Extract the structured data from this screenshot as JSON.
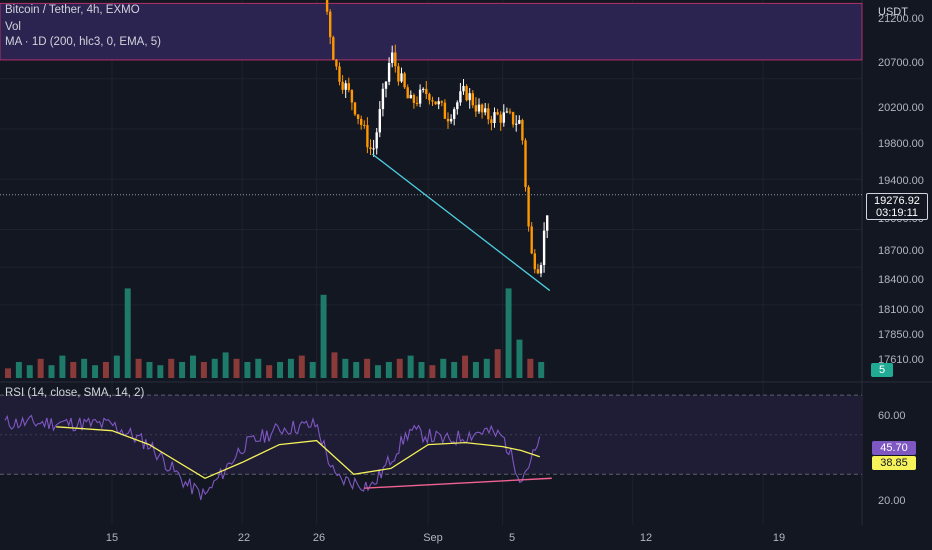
{
  "legend": {
    "symbol": "Bitcoin / Tether, 4h, EXMO",
    "vol": "Vol",
    "ma": "MA · 1D (200, hlc3, 0, EMA, 5)",
    "rsi": "RSI (14, close, SMA, 14, 2)"
  },
  "axis": {
    "currency": "USDT",
    "price_ticks": [
      "21200.00",
      "20700.00",
      "20200.00",
      "19800.00",
      "19400.00",
      "19000.00",
      "18700.00",
      "18400.00",
      "18100.00",
      "17850.00",
      "17610.00"
    ],
    "rsi_ticks": [
      "60.00",
      "20.00"
    ],
    "x_ticks": [
      "15",
      "22",
      "26",
      "Sep",
      "5",
      "12",
      "19"
    ]
  },
  "price_tag": {
    "price": "19276.92",
    "countdown": "03:19:11"
  },
  "badges": {
    "volume": "5",
    "rsi": "45.70",
    "rsi_ma": "38.85"
  },
  "colors": {
    "background": "#131722",
    "up": "#ffffff",
    "down": "#ff9800",
    "zone_fill": "#2b2350",
    "zone_border": "#b52f6a",
    "support_line": "#4dd0e1",
    "rsi_line": "#7e57c2",
    "rsi_ma": "#f5f25a",
    "rsi_trend": "#f06292",
    "vol_up": "#1e7a69",
    "vol_down": "#8b3a3a"
  },
  "chart_data": {
    "type": "candlestick",
    "title": "Bitcoin / Tether, 4h, EXMO",
    "x_ticks": [
      "15",
      "22",
      "26",
      "Sep",
      "5",
      "12",
      "19"
    ],
    "price_ylim": [
      17500,
      21500
    ],
    "resistance_zone": [
      20350,
      20800
    ],
    "last_price": 19276.92,
    "price_path": [
      {
        "x": "Aug 19",
        "y": 21350
      },
      {
        "x": "Aug 20",
        "y": 21150
      },
      {
        "x": "Aug 22",
        "y": 21300
      },
      {
        "x": "Aug 24",
        "y": 21350
      },
      {
        "x": "Aug 26",
        "y": 21300
      },
      {
        "x": "Aug 27",
        "y": 20300
      },
      {
        "x": "Aug 28",
        "y": 20000
      },
      {
        "x": "Aug 29",
        "y": 19600
      },
      {
        "x": "Aug 30",
        "y": 20400
      },
      {
        "x": "Aug 31",
        "y": 20000
      },
      {
        "x": "Sep 1",
        "y": 20100
      },
      {
        "x": "Sep 2",
        "y": 19900
      },
      {
        "x": "Sep 3",
        "y": 20100
      },
      {
        "x": "Sep 4",
        "y": 19900
      },
      {
        "x": "Sep 5",
        "y": 19900
      },
      {
        "x": "Sep 6",
        "y": 19850
      },
      {
        "x": "Sep 6 PM",
        "y": 18800
      },
      {
        "x": "Sep 7",
        "y": 18700
      },
      {
        "x": "Sep 7 PM",
        "y": 19276.92
      }
    ],
    "support_trendline": [
      {
        "x": "Aug 29",
        "y": 19600
      },
      {
        "x": "Sep 7",
        "y": 18450
      }
    ],
    "volume": [
      3,
      5,
      4,
      6,
      4,
      7,
      5,
      6,
      4,
      5,
      7,
      28,
      6,
      5,
      4,
      6,
      5,
      7,
      5,
      6,
      8,
      6,
      5,
      6,
      4,
      5,
      6,
      7,
      5,
      26,
      8,
      6,
      5,
      6,
      4,
      5,
      6,
      7,
      5,
      4,
      6,
      5,
      7,
      5,
      6,
      9,
      28,
      12,
      6,
      5
    ],
    "rsi": {
      "ylim": [
        10,
        80
      ],
      "levels": [
        70,
        30
      ],
      "current": 45.7,
      "ma_current": 38.85,
      "rsi_path": [
        {
          "x": "Aug 12",
          "y": 56
        },
        {
          "x": "Aug 15",
          "y": 55
        },
        {
          "x": "Aug 17",
          "y": 45
        },
        {
          "x": "Aug 19",
          "y": 25
        },
        {
          "x": "Aug 20",
          "y": 19
        },
        {
          "x": "Aug 22",
          "y": 44
        },
        {
          "x": "Aug 24",
          "y": 53
        },
        {
          "x": "Aug 26",
          "y": 55
        },
        {
          "x": "Aug 27",
          "y": 28
        },
        {
          "x": "Aug 29",
          "y": 24
        },
        {
          "x": "Aug 31",
          "y": 52
        },
        {
          "x": "Sep 2",
          "y": 47
        },
        {
          "x": "Sep 4",
          "y": 52
        },
        {
          "x": "Sep 5",
          "y": 49
        },
        {
          "x": "Sep 6",
          "y": 28
        },
        {
          "x": "Sep 7",
          "y": 45.7
        }
      ],
      "ma_path": [
        {
          "x": "Aug 12",
          "y": 54
        },
        {
          "x": "Aug 15",
          "y": 52
        },
        {
          "x": "Aug 17",
          "y": 45
        },
        {
          "x": "Aug 20",
          "y": 28
        },
        {
          "x": "Aug 22",
          "y": 36
        },
        {
          "x": "Aug 24",
          "y": 45
        },
        {
          "x": "Aug 26",
          "y": 47
        },
        {
          "x": "Aug 28",
          "y": 30
        },
        {
          "x": "Aug 30",
          "y": 33
        },
        {
          "x": "Sep 1",
          "y": 45
        },
        {
          "x": "Sep 3",
          "y": 46
        },
        {
          "x": "Sep 5",
          "y": 44
        },
        {
          "x": "Sep 6",
          "y": 42
        },
        {
          "x": "Sep 7",
          "y": 38.85
        }
      ],
      "trendline": [
        {
          "x": "Aug 29",
          "y": 23
        },
        {
          "x": "Sep 7",
          "y": 28
        }
      ]
    }
  }
}
